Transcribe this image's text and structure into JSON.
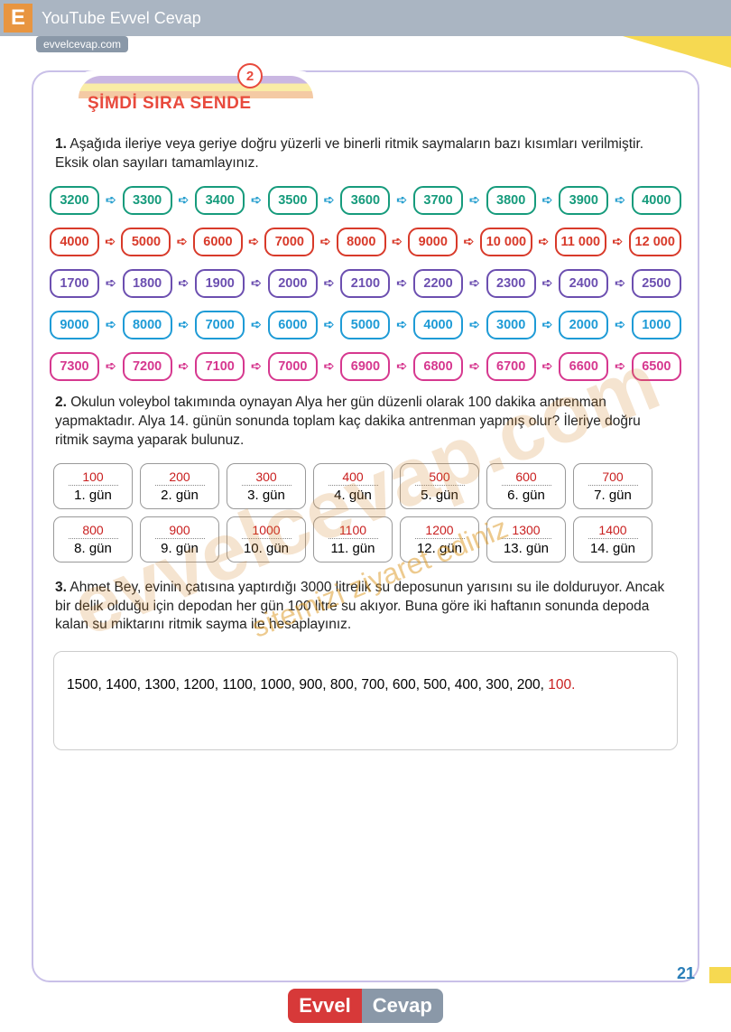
{
  "header": {
    "badge": "E",
    "youtube": "YouTube Evvel Cevap",
    "site": "evvelcevap.com"
  },
  "title": {
    "text": "ŞİMDİ SIRA SENDE",
    "num": "2"
  },
  "q1": {
    "num": "1.",
    "text": "Aşağıda ileriye veya geriye doğru yüzerli ve binerli ritmik saymaların bazı kısımları verilmiştir. Eksik olan sayıları tamamlayınız."
  },
  "rows": [
    {
      "color": "#169b7c",
      "arrow": "#2aa0cf",
      "vals": [
        "3200",
        "3300",
        "3400",
        "3500",
        "3600",
        "3700",
        "3800",
        "3900",
        "4000"
      ]
    },
    {
      "color": "#d83a2a",
      "arrow": "#d83a2a",
      "vals": [
        "4000",
        "5000",
        "6000",
        "7000",
        "8000",
        "9000",
        "10 000",
        "11 000",
        "12 000"
      ]
    },
    {
      "color": "#6c4fb0",
      "arrow": "#6c4fb0",
      "vals": [
        "1700",
        "1800",
        "1900",
        "2000",
        "2100",
        "2200",
        "2300",
        "2400",
        "2500"
      ]
    },
    {
      "color": "#1e9bd6",
      "arrow": "#1e9bd6",
      "vals": [
        "9000",
        "8000",
        "7000",
        "6000",
        "5000",
        "4000",
        "3000",
        "2000",
        "1000"
      ]
    },
    {
      "color": "#d6388f",
      "arrow": "#d6388f",
      "vals": [
        "7300",
        "7200",
        "7100",
        "7000",
        "6900",
        "6800",
        "6700",
        "6600",
        "6500"
      ]
    }
  ],
  "q2": {
    "num": "2.",
    "text": "Okulun voleybol takımında oynayan Alya her gün düzenli olarak 100 dakika antrenman yapmaktadır. Alya 14. günün sonunda toplam kaç dakika antrenman yapmış olur? İleriye doğru ritmik sayma yaparak bulunuz."
  },
  "days": [
    {
      "v": "100",
      "d": "1. gün"
    },
    {
      "v": "200",
      "d": "2. gün"
    },
    {
      "v": "300",
      "d": "3. gün"
    },
    {
      "v": "400",
      "d": "4. gün"
    },
    {
      "v": "500",
      "d": "5. gün"
    },
    {
      "v": "600",
      "d": "6. gün"
    },
    {
      "v": "700",
      "d": "7. gün"
    },
    {
      "v": "800",
      "d": "8. gün"
    },
    {
      "v": "900",
      "d": "9. gün"
    },
    {
      "v": "1000",
      "d": "10. gün"
    },
    {
      "v": "1100",
      "d": "11. gün"
    },
    {
      "v": "1200",
      "d": "12. gün"
    },
    {
      "v": "1300",
      "d": "13. gün"
    },
    {
      "v": "1400",
      "d": "14. gün"
    }
  ],
  "q3": {
    "num": "3.",
    "text": "Ahmet Bey, evinin çatısına yaptırdığı 3000 litrelik su deposunun yarısını su ile dolduruyor. Ancak bir delik olduğu için depodan her gün 100 litre su akıyor. Buna göre iki haftanın sonunda depoda kalan su miktarını ritmik sayma ile hesaplayınız."
  },
  "answer3": {
    "seq": "1500, 1400, 1300, 1200, 1100, 1000, 900, 800, 700, 600, 500, 400, 300, 200, ",
    "last": "100."
  },
  "pagenum": "21",
  "footer": {
    "p1": "Evvel",
    "p2": "Cevap"
  },
  "wm": "evvelcevap.com",
  "wm2": "sitemizi ziyaret ediniz"
}
